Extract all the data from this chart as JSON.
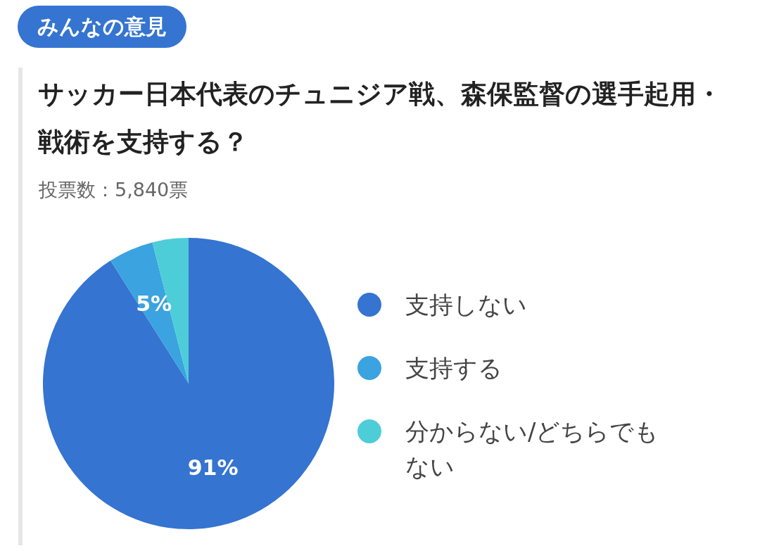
{
  "chart_data": {
    "type": "pie",
    "title": "サッカー日本代表のチュニジア戦、森保監督の選手起用・戦術を支持する？",
    "subtitle": "投票数：5,840票",
    "annotations": [
      "みんなの意見"
    ],
    "categories": [
      "支持しない",
      "支持する",
      "分からない/どちらでもない"
    ],
    "values": [
      91,
      5,
      4
    ],
    "value_labels": [
      "91%",
      "5%",
      null
    ],
    "colors": [
      "#3574d0",
      "#3aa3e0",
      "#4dcdd8"
    ],
    "legend": "right"
  }
}
